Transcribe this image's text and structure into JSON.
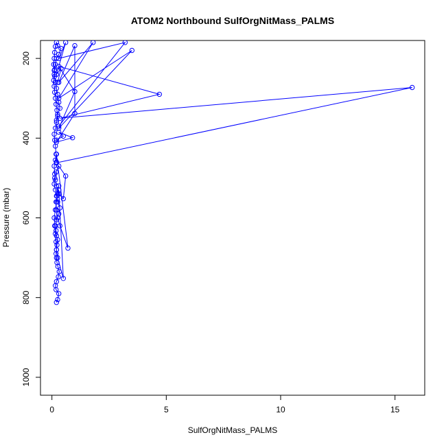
{
  "chart_data": {
    "type": "line",
    "title": "ATOM2 Northbound SulfOrgNitMass_PALMS",
    "xlabel": "SulfOrgNitMass_PALMS",
    "ylabel": "Pressure (mbar)",
    "xlim": [
      -0.5,
      16.3
    ],
    "ylim": [
      1045,
      155
    ],
    "y_reversed": true,
    "x_ticks": [
      0,
      5,
      10,
      15
    ],
    "y_ticks": [
      200,
      400,
      600,
      800,
      1000
    ],
    "grid": false,
    "marker": "open-circle",
    "series": [
      {
        "color": "#0000ff",
        "x": [
          0.2,
          0.25,
          0.3,
          0.18,
          0.15,
          0.2,
          0.28,
          0.32,
          0.26,
          0.22,
          0.2,
          0.18,
          0.2,
          0.22,
          0.25,
          0.2,
          0.18,
          0.16,
          0.2,
          0.3,
          0.35,
          0.25,
          0.2,
          0.15,
          0.1,
          0.12,
          0.18,
          0.3,
          0.6,
          0.5,
          0.3,
          0.2,
          0.15,
          0.12,
          0.1,
          0.15,
          0.2,
          0.7,
          0.35,
          0.25,
          0.2,
          0.18,
          0.22,
          0.3,
          0.5,
          0.25,
          0.2,
          0.18,
          0.15,
          0.12,
          0.1,
          0.15,
          0.2,
          0.25,
          0.3
        ],
        "y": [
          812,
          805,
          790,
          780,
          770,
          760,
          748,
          735,
          722,
          712,
          700,
          690,
          680,
          668,
          655,
          645,
          632,
          620,
          605,
          590,
          575,
          560,
          545,
          530,
          515,
          500,
          485,
          470,
          495,
          552,
          540,
          520,
          505,
          490,
          470,
          455,
          440,
          676,
          620,
          600,
          580,
          560,
          545,
          530,
          752,
          700,
          680,
          660,
          640,
          620,
          600,
          580,
          560,
          540,
          520
        ]
      },
      {
        "color": "#0000ff",
        "x": [
          0.2,
          0.18,
          0.15,
          0.12,
          0.1,
          0.15,
          0.2,
          0.25,
          0.22,
          0.18,
          0.15,
          0.12,
          0.1,
          0.08,
          0.1,
          0.12,
          0.15,
          0.2,
          0.3,
          0.4,
          0.25,
          0.2,
          0.15,
          0.12,
          0.1,
          0.08,
          0.1,
          0.12,
          0.15,
          0.2,
          0.25,
          0.3,
          0.35,
          0.25,
          0.2
        ],
        "y": [
          460,
          440,
          420,
          405,
          390,
          375,
          360,
          345,
          330,
          315,
          300,
          285,
          270,
          255,
          240,
          228,
          215,
          200,
          190,
          175,
          168,
          160,
          170,
          185,
          200,
          215,
          230,
          245,
          260,
          275,
          290,
          310,
          325,
          340,
          355
        ]
      },
      {
        "color": "#0000ff",
        "x": [
          0.2,
          15.75,
          0.35,
          4.7,
          0.3,
          1.0,
          0.3,
          3.5,
          0.3,
          1.8,
          0.3,
          1.0,
          1.0,
          0.2,
          0.9,
          0.3,
          0.5,
          0.2
        ],
        "y": [
          462,
          273,
          350,
          290,
          220,
          283,
          375,
          180,
          300,
          160,
          260,
          168,
          338,
          410,
          399,
          385,
          395,
          405
        ]
      },
      {
        "color": "#0000ff",
        "x": [
          0.3,
          3.2,
          0.3,
          0.6,
          0.2,
          0.4,
          0.25
        ],
        "y": [
          370,
          160,
          200,
          160,
          240,
          225,
          260
        ]
      }
    ]
  }
}
